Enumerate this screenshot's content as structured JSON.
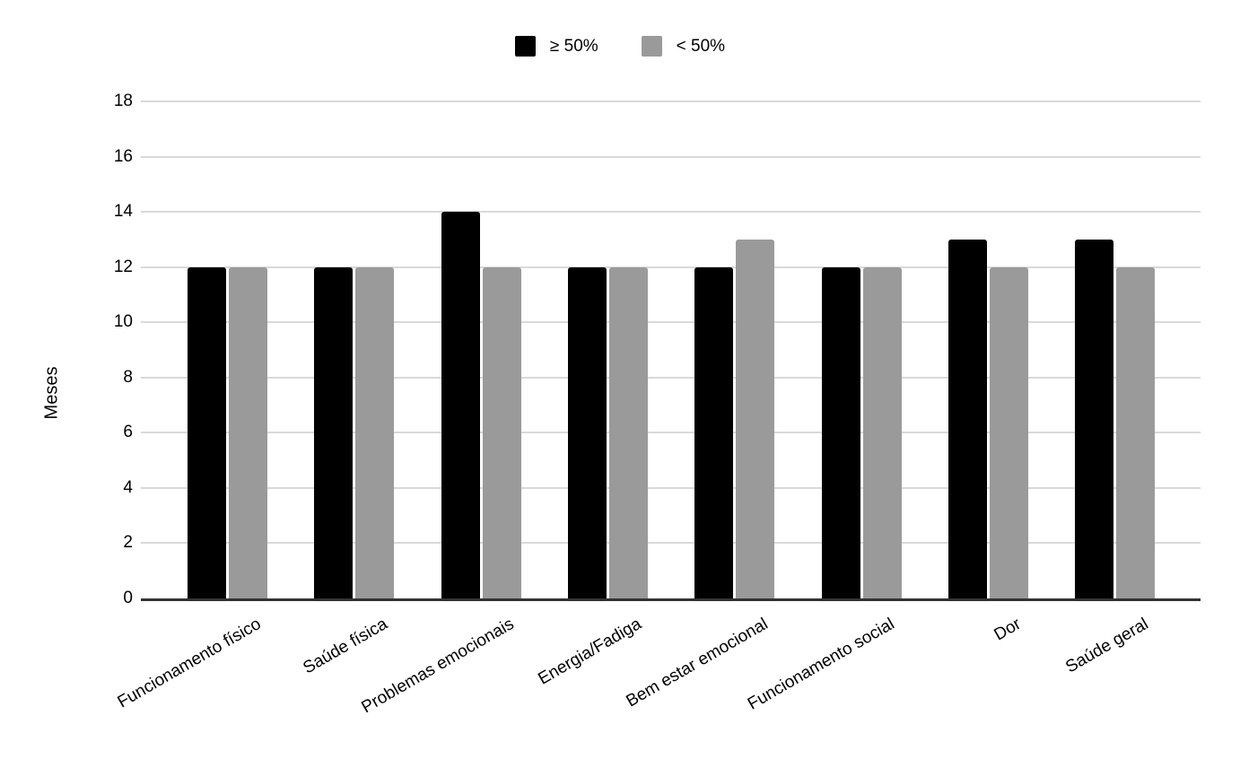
{
  "chart_data": {
    "type": "bar",
    "title": "",
    "categories": [
      "Funcionamento físico",
      "Saúde física",
      "Problemas emocionais",
      "Energia/Fadiga",
      "Bem estar emocional",
      "Funcionamento social",
      "Dor",
      "Saúde geral"
    ],
    "series": [
      {
        "name": "≥ 50%",
        "color": "#000000",
        "values": [
          12,
          12,
          14,
          12,
          12,
          12,
          13,
          13
        ]
      },
      {
        "name": "< 50%",
        "color": "#9a9a9a",
        "values": [
          12,
          12,
          12,
          12,
          13,
          12,
          12,
          12
        ]
      }
    ],
    "xlabel": "",
    "ylabel": "Meses",
    "ylim": [
      0,
      18
    ],
    "ytick_step": 2,
    "yticks": [
      0,
      2,
      4,
      6,
      8,
      10,
      12,
      14,
      16,
      18
    ],
    "grid": true,
    "legend_position": "top-center",
    "colors": {
      "gridline": "#d9d9d9",
      "axis_line": "#333333",
      "text": "#000000",
      "background": "#ffffff"
    }
  }
}
